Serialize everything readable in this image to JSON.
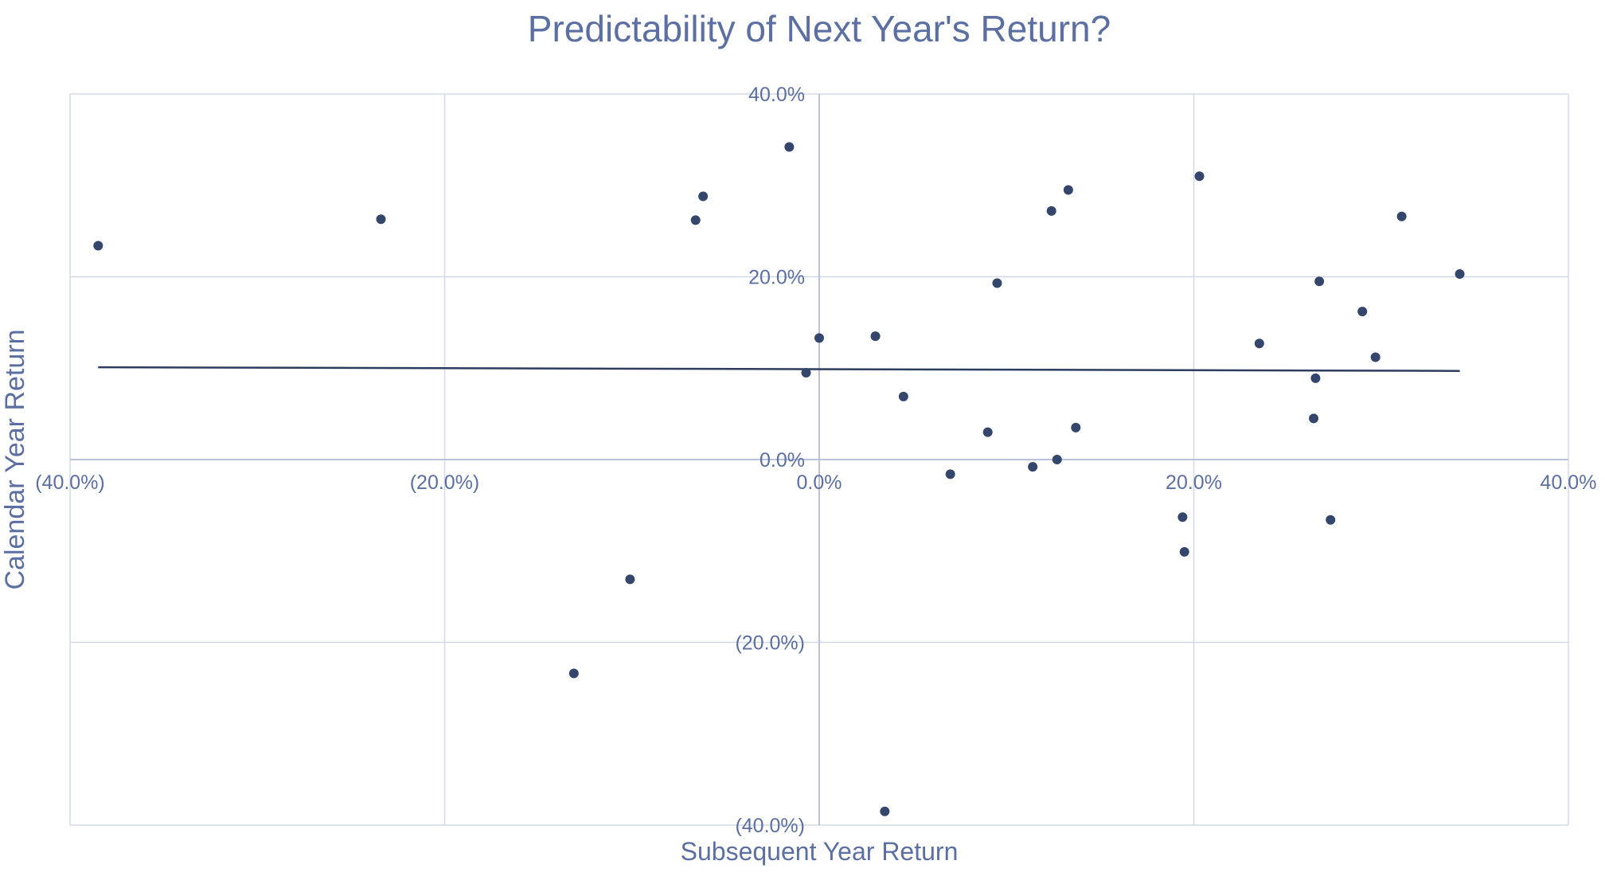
{
  "chart_data": {
    "type": "scatter",
    "title": "Predictability of Next Year's Return?",
    "xlabel": "Subsequent Year Return",
    "ylabel": "Calendar Year Return",
    "xlim": [
      -40,
      40
    ],
    "ylim": [
      -40,
      40
    ],
    "x_ticks": [
      {
        "value": -40,
        "label": "(40.0%)"
      },
      {
        "value": -20,
        "label": "(20.0%)"
      },
      {
        "value": 0,
        "label": "0.0%"
      },
      {
        "value": 20,
        "label": "20.0%"
      },
      {
        "value": 40,
        "label": "40.0%"
      }
    ],
    "y_ticks": [
      {
        "value": 40,
        "label": "40.0%"
      },
      {
        "value": 20,
        "label": "20.0%"
      },
      {
        "value": 0,
        "label": "0.0%"
      },
      {
        "value": -20,
        "label": "(20.0%)"
      },
      {
        "value": -40,
        "label": "(40.0%)"
      }
    ],
    "grid": true,
    "legend": "none",
    "colors": {
      "title": "#5b6fa3",
      "axis_text": "#5b6fa3",
      "grid": "#d2d8e6",
      "zero_line": "#b9c2d9",
      "marker": "#34466b",
      "trendline": "#2d3c5f"
    },
    "points": [
      {
        "x": -38.5,
        "y": 23.4
      },
      {
        "x": -23.4,
        "y": 26.3
      },
      {
        "x": -13.1,
        "y": -23.4
      },
      {
        "x": -10.1,
        "y": -13.1
      },
      {
        "x": -6.6,
        "y": 26.2
      },
      {
        "x": -6.2,
        "y": 28.8
      },
      {
        "x": -1.6,
        "y": 34.2
      },
      {
        "x": -0.7,
        "y": 9.5
      },
      {
        "x": 0.0,
        "y": 13.3
      },
      {
        "x": 3.0,
        "y": 13.5
      },
      {
        "x": 3.5,
        "y": -38.5
      },
      {
        "x": 4.5,
        "y": 6.9
      },
      {
        "x": 7.0,
        "y": -1.6
      },
      {
        "x": 9.0,
        "y": 3.0
      },
      {
        "x": 9.5,
        "y": 19.3
      },
      {
        "x": 11.4,
        "y": -0.8
      },
      {
        "x": 12.4,
        "y": 27.2
      },
      {
        "x": 12.7,
        "y": 0.0
      },
      {
        "x": 13.3,
        "y": 29.5
      },
      {
        "x": 13.7,
        "y": 3.5
      },
      {
        "x": 19.4,
        "y": -6.3
      },
      {
        "x": 19.5,
        "y": -10.1
      },
      {
        "x": 20.3,
        "y": 31.0
      },
      {
        "x": 23.5,
        "y": 12.7
      },
      {
        "x": 26.4,
        "y": 4.5
      },
      {
        "x": 26.5,
        "y": 8.9
      },
      {
        "x": 26.7,
        "y": 19.5
      },
      {
        "x": 27.3,
        "y": -6.6
      },
      {
        "x": 29.0,
        "y": 16.2
      },
      {
        "x": 29.7,
        "y": 11.2
      },
      {
        "x": 31.1,
        "y": 26.6
      },
      {
        "x": 34.2,
        "y": 20.3
      }
    ],
    "trendline": {
      "x": [
        -38.5,
        34.2
      ],
      "y": [
        10.1,
        9.7
      ]
    }
  }
}
